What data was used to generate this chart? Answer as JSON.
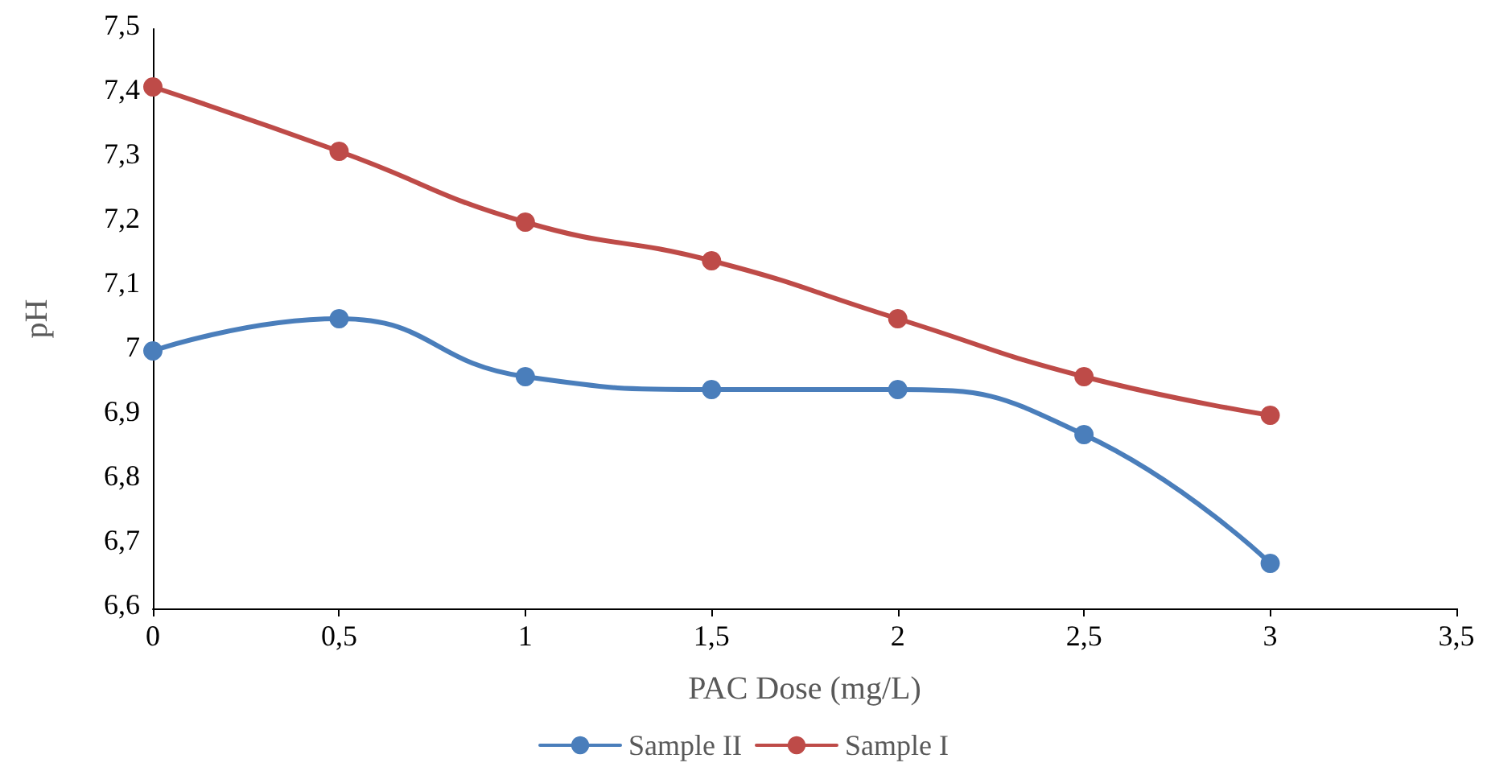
{
  "chart_data": {
    "type": "line",
    "xlabel": "PAC Dose (mg/L)",
    "ylabel": "pH",
    "x": [
      0,
      0.5,
      1,
      1.5,
      2,
      2.5,
      3
    ],
    "series": [
      {
        "name": "Sample II",
        "color": "#4a7ebb",
        "values": [
          7.0,
          7.05,
          6.96,
          6.94,
          6.94,
          6.87,
          6.67
        ]
      },
      {
        "name": "Sample I",
        "color": "#be4b48",
        "values": [
          7.41,
          7.31,
          7.2,
          7.14,
          7.05,
          6.96,
          6.9
        ]
      }
    ],
    "xlim": [
      0,
      3.5
    ],
    "xticks": [
      0,
      {
        "value": 0.5,
        "label": "0,5"
      },
      1,
      {
        "value": 1.5,
        "label": "1,5"
      },
      2,
      {
        "value": 2.5,
        "label": "2,5"
      },
      3,
      {
        "value": 3.5,
        "label": "3,5"
      }
    ],
    "ylim": [
      6.6,
      7.5
    ],
    "yticks": [
      {
        "value": 6.6,
        "label": "6,6"
      },
      {
        "value": 6.7,
        "label": "6,7"
      },
      {
        "value": 6.8,
        "label": "6,8"
      },
      {
        "value": 6.9,
        "label": "6,9"
      },
      7,
      {
        "value": 7.1,
        "label": "7,1"
      },
      {
        "value": 7.2,
        "label": "7,2"
      },
      {
        "value": 7.3,
        "label": "7,3"
      },
      {
        "value": 7.4,
        "label": "7,4"
      },
      {
        "value": 7.5,
        "label": "7,5"
      }
    ],
    "grid": false,
    "legend": "bottom",
    "marker": "circle",
    "line_style": "solid"
  }
}
